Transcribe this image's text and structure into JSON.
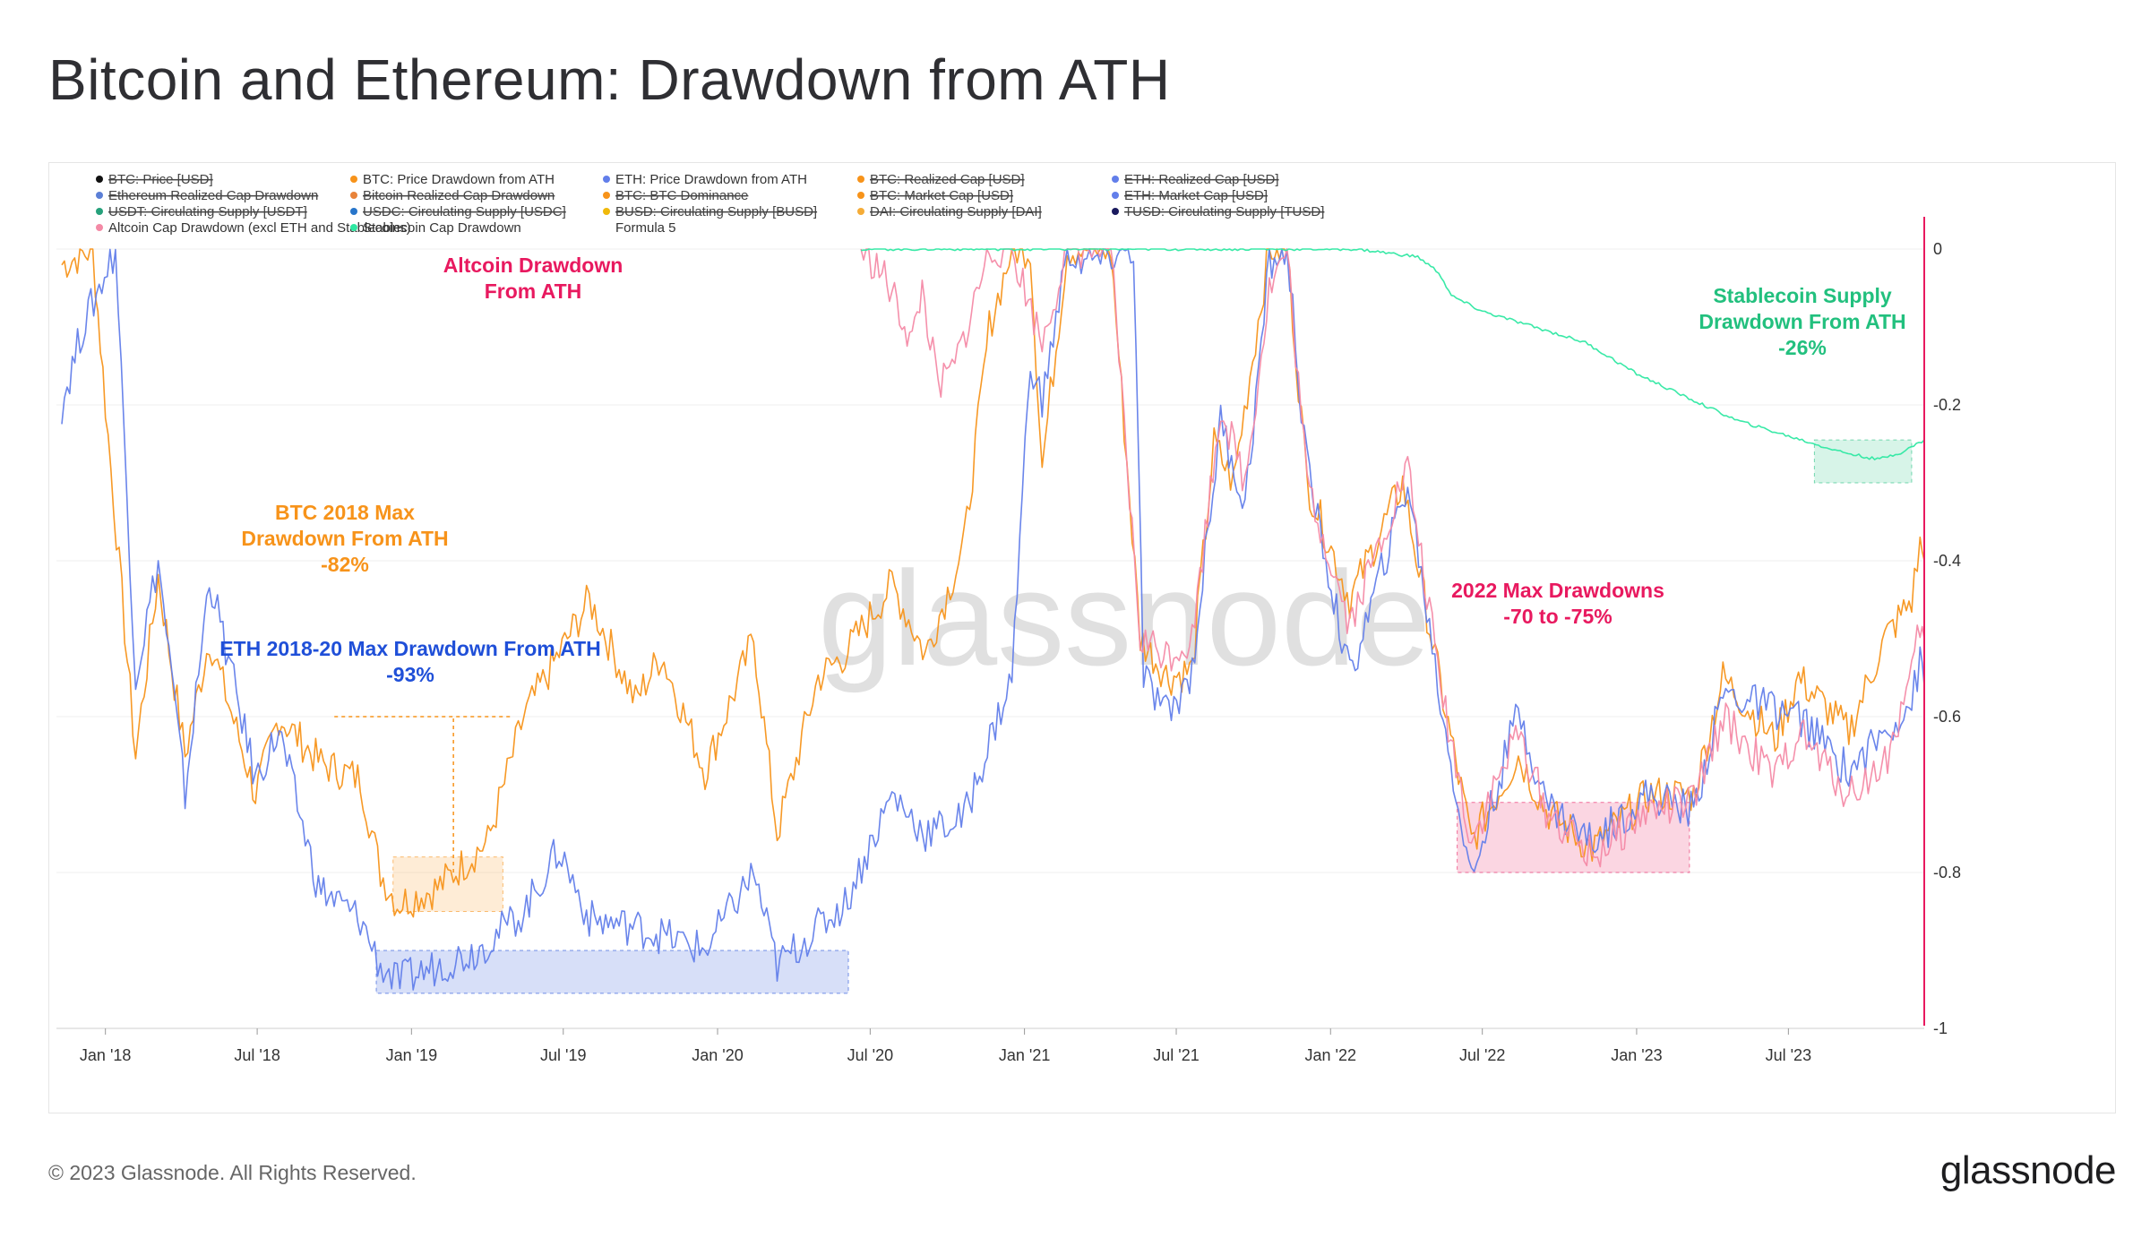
{
  "page": {
    "title": "Bitcoin and Ethereum: Drawdown from ATH",
    "copyright": "© 2023 Glassnode. All Rights Reserved.",
    "logo": "glassnode",
    "watermark": "glassnode"
  },
  "chart_data": {
    "type": "line",
    "title": "Bitcoin and Ethereum: Drawdown from ATH",
    "xlabel": "",
    "ylabel": "",
    "ylim": [
      -1,
      0
    ],
    "xlim": [
      "2017-11-10",
      "2023-12-10"
    ],
    "grid": true,
    "legend_position": "top",
    "x_ticks": [
      "Jan '18",
      "Jul '18",
      "Jan '19",
      "Jul '19",
      "Jan '20",
      "Jul '20",
      "Jan '21",
      "Jul '21",
      "Jan '22",
      "Jul '22",
      "Jan '23",
      "Jul '23"
    ],
    "x_tick_dates": [
      "2018-01-01",
      "2018-07-01",
      "2019-01-01",
      "2019-07-01",
      "2020-01-01",
      "2020-07-01",
      "2021-01-01",
      "2021-07-01",
      "2022-01-01",
      "2022-07-01",
      "2023-01-01",
      "2023-07-01"
    ],
    "y_ticks": [
      0,
      -0.2,
      -0.4,
      -0.6,
      -0.8,
      -1
    ],
    "y_tick_labels": [
      "0",
      "-0.2",
      "-0.4",
      "-0.6",
      "-0.8",
      "-1"
    ],
    "legend": [
      {
        "name": "BTC: Price [USD]",
        "color": "#111111",
        "active": false
      },
      {
        "name": "BTC: Price Drawdown from ATH",
        "color": "#f7931a",
        "active": true
      },
      {
        "name": "ETH: Price Drawdown from ATH",
        "color": "#627eea",
        "active": true
      },
      {
        "name": "BTC: Realized Cap [USD]",
        "color": "#f7931a",
        "active": false
      },
      {
        "name": "ETH: Realized Cap [USD]",
        "color": "#627eea",
        "active": false
      },
      {
        "name": "Ethereum Realized Cap Drawdown",
        "color": "#5b7fd6",
        "active": false
      },
      {
        "name": "Bitcoin Realized Cap Drawdown",
        "color": "#e8833a",
        "active": false
      },
      {
        "name": "BTC: BTC Dominance",
        "color": "#f7931a",
        "active": false
      },
      {
        "name": "BTC: Market Cap [USD]",
        "color": "#f7931a",
        "active": false
      },
      {
        "name": "ETH: Market Cap [USD]",
        "color": "#627eea",
        "active": false
      },
      {
        "name": "USDT: Circulating Supply [USDT]",
        "color": "#26a17b",
        "active": false
      },
      {
        "name": "USDC: Circulating Supply [USDC]",
        "color": "#2775ca",
        "active": false
      },
      {
        "name": "BUSD: Circulating Supply [BUSD]",
        "color": "#f0b90b",
        "active": false
      },
      {
        "name": "DAI: Circulating Supply [DAI]",
        "color": "#f5ac37",
        "active": false
      },
      {
        "name": "TUSD: Circulating Supply [TUSD]",
        "color": "#1a1a5e",
        "active": false
      },
      {
        "name": "Altcoin Cap Drawdown (excl ETH and Stablecoins)",
        "color": "#f48aa6",
        "active": true
      },
      {
        "name": "Stablecoin Cap Drawdown",
        "color": "#2ee8a2",
        "active": true
      },
      {
        "name": "Formula 5",
        "color": "",
        "active": true
      }
    ],
    "series": [
      {
        "name": "BTC: Price Drawdown from ATH",
        "color": "#f7931a",
        "points": [
          [
            "2017-11-10",
            -0.02
          ],
          [
            "2017-12-17",
            0.0
          ],
          [
            "2018-01-01",
            -0.2
          ],
          [
            "2018-02-06",
            -0.65
          ],
          [
            "2018-03-05",
            -0.42
          ],
          [
            "2018-04-06",
            -0.65
          ],
          [
            "2018-05-05",
            -0.5
          ],
          [
            "2018-06-29",
            -0.7
          ],
          [
            "2018-07-27",
            -0.6
          ],
          [
            "2018-09-15",
            -0.66
          ],
          [
            "2018-11-01",
            -0.68
          ],
          [
            "2018-11-25",
            -0.8
          ],
          [
            "2018-12-15",
            -0.84
          ],
          [
            "2019-02-01",
            -0.82
          ],
          [
            "2019-04-02",
            -0.76
          ],
          [
            "2019-05-15",
            -0.6
          ],
          [
            "2019-06-26], -0.35",
            -0.35
          ],
          [
            "2019-08-01",
            -0.45
          ],
          [
            "2019-09-25",
            -0.58
          ],
          [
            "2019-10-26",
            -0.52
          ],
          [
            "2019-12-17",
            -0.67
          ],
          [
            "2020-02-13",
            -0.5
          ],
          [
            "2020-03-12",
            -0.75
          ],
          [
            "2020-04-30",
            -0.55
          ],
          [
            "2020-06-01",
            -0.52
          ],
          [
            "2020-07-27",
            -0.43
          ],
          [
            "2020-09-05",
            -0.52
          ],
          [
            "2020-10-21",
            -0.38
          ],
          [
            "2020-11-20",
            -0.1
          ],
          [
            "2020-12-17",
            0.0
          ],
          [
            "2021-01-08",
            0.0
          ],
          [
            "2021-01-22",
            -0.28
          ],
          [
            "2021-02-21",
            0.0
          ],
          [
            "2021-03-13",
            0.0
          ],
          [
            "2021-04-14",
            0.0
          ],
          [
            "2021-05-19",
            -0.5
          ],
          [
            "2021-06-22",
            -0.55
          ],
          [
            "2021-07-20",
            -0.54
          ],
          [
            "2021-08-15",
            -0.25
          ],
          [
            "2021-09-07",
            -0.3
          ],
          [
            "2021-10-20",
            0.0
          ],
          [
            "2021-11-10",
            0.0
          ],
          [
            "2021-12-04",
            -0.3
          ],
          [
            "2022-01-24",
            -0.45
          ],
          [
            "2022-03-28",
            -0.3
          ],
          [
            "2022-05-12",
            -0.56
          ],
          [
            "2022-06-18",
            -0.76
          ],
          [
            "2022-08-13",
            -0.65
          ],
          [
            "2022-09-15",
            -0.72
          ],
          [
            "2022-11-09",
            -0.77
          ],
          [
            "2023-01-15",
            -0.7
          ],
          [
            "2023-03-10",
            -0.7
          ],
          [
            "2023-04-14",
            -0.55
          ],
          [
            "2023-06-15",
            -0.63
          ],
          [
            "2023-07-13",
            -0.55
          ],
          [
            "2023-09-11",
            -0.62
          ],
          [
            "2023-10-24",
            -0.5
          ],
          [
            "2023-11-25",
            -0.45
          ],
          [
            "2023-12-05",
            -0.38
          ],
          [
            "2023-12-10",
            -0.4
          ]
        ]
      },
      {
        "name": "ETH: Price Drawdown from ATH",
        "color": "#627eea",
        "points": [
          [
            "2017-11-10",
            -0.2
          ],
          [
            "2017-12-05",
            -0.1
          ],
          [
            "2018-01-13",
            0.0
          ],
          [
            "2018-02-06",
            -0.55
          ],
          [
            "2018-03-05",
            -0.4
          ],
          [
            "2018-04-06",
            -0.7
          ],
          [
            "2018-05-05",
            -0.42
          ],
          [
            "2018-06-29",
            -0.68
          ],
          [
            "2018-07-27",
            -0.62
          ],
          [
            "2018-09-12",
            -0.82
          ],
          [
            "2018-11-01",
            -0.86
          ],
          [
            "2018-11-25",
            -0.92
          ],
          [
            "2018-12-15",
            -0.94
          ],
          [
            "2019-01-30], -0.91",
            -0.91
          ],
          [
            "2019-03-20",
            -0.9
          ],
          [
            "2019-05-15",
            -0.85
          ],
          [
            "2019-06-26",
            -0.77
          ],
          [
            "2019-08-01",
            -0.86
          ],
          [
            "2019-09-25",
            -0.87
          ],
          [
            "2019-10-26",
            -0.88
          ],
          [
            "2019-12-17",
            -0.9
          ],
          [
            "2020-02-13",
            -0.8
          ],
          [
            "2020-03-12",
            -0.92
          ],
          [
            "2020-04-30",
            -0.87
          ],
          [
            "2020-06-01",
            -0.84
          ],
          [
            "2020-07-27",
            -0.7
          ],
          [
            "2020-09-05",
            -0.75
          ],
          [
            "2020-10-21",
            -0.73
          ],
          [
            "2020-11-24",
            -0.62
          ],
          [
            "2020-12-17",
            -0.55
          ],
          [
            "2021-01-08",
            -0.14
          ],
          [
            "2021-01-22",
            -0.2
          ],
          [
            "2021-02-21",
            0.0
          ],
          [
            "2021-03-13",
            -0.02
          ],
          [
            "2021-05-11",
            0.0
          ],
          [
            "2021-05-23",
            -0.55
          ],
          [
            "2021-06-22",
            -0.6
          ],
          [
            "2021-07-20",
            -0.54
          ],
          [
            "2021-08-23",
            -0.22
          ],
          [
            "2021-09-21",
            -0.33
          ],
          [
            "2021-10-20",
            -0.02
          ],
          [
            "2021-11-10",
            0.0
          ],
          [
            "2021-12-04",
            -0.28
          ],
          [
            "2022-01-24",
            -0.55
          ],
          [
            "2022-04-03",
            -0.3
          ],
          [
            "2022-05-12",
            -0.58
          ],
          [
            "2022-06-18",
            -0.81
          ],
          [
            "2022-08-13",
            -0.59
          ],
          [
            "2022-09-15",
            -0.71
          ],
          [
            "2022-11-09",
            -0.76
          ],
          [
            "2023-01-15",
            -0.7
          ],
          [
            "2023-03-10",
            -0.72
          ],
          [
            "2023-04-14",
            -0.57
          ],
          [
            "2023-06-15], -0.64",
            -0.64
          ],
          [
            "2023-07-13",
            -0.6
          ],
          [
            "2023-09-11",
            -0.67
          ],
          [
            "2023-10-24",
            -0.62
          ],
          [
            "2023-11-25",
            -0.58
          ],
          [
            "2023-12-05",
            -0.53
          ],
          [
            "2023-12-10",
            -0.56
          ]
        ]
      },
      {
        "name": "Altcoin Cap Drawdown (excl ETH and Stablecoins)",
        "color": "#f48aa6",
        "points": [
          [
            "2020-06-20",
            0.0
          ],
          [
            "2020-07-15",
            -0.03
          ],
          [
            "2020-08-05",
            -0.08
          ],
          [
            "2020-08-20",
            -0.12
          ],
          [
            "2020-09-01",
            -0.05
          ],
          [
            "2020-09-20",
            -0.18
          ],
          [
            "2020-10-10",
            -0.15
          ],
          [
            "2020-10-30",
            -0.08
          ],
          [
            "2020-11-20",
            0.0
          ],
          [
            "2020-12-17",
            0.0
          ],
          [
            "2021-01-22",
            -0.12
          ],
          [
            "2021-02-21",
            0.0
          ],
          [
            "2021-04-14",
            0.0
          ],
          [
            "2021-05-19",
            -0.5
          ],
          [
            "2021-06-22",
            -0.52
          ],
          [
            "2021-07-20",
            -0.5
          ],
          [
            "2021-08-23",
            -0.2
          ],
          [
            "2021-09-21",
            -0.3
          ],
          [
            "2021-10-20",
            -0.05
          ],
          [
            "2021-11-10",
            0.0
          ],
          [
            "2021-12-04",
            -0.3
          ],
          [
            "2022-01-24",
            -0.48
          ],
          [
            "2022-04-03",
            -0.28
          ],
          [
            "2022-05-12",
            -0.56
          ],
          [
            "2022-06-18",
            -0.76
          ],
          [
            "2022-08-13",
            -0.62
          ],
          [
            "2022-09-15",
            -0.72
          ],
          [
            "2022-11-09",
            -0.78
          ],
          [
            "2023-01-15",
            -0.72
          ],
          [
            "2023-03-10",
            -0.71
          ],
          [
            "2023-04-14",
            -0.6
          ],
          [
            "2023-06-15",
            -0.68
          ],
          [
            "2023-07-13",
            -0.62
          ],
          [
            "2023-09-11",
            -0.7
          ],
          [
            "2023-10-24",
            -0.66
          ],
          [
            "2023-11-25",
            -0.55
          ],
          [
            "2023-12-05",
            -0.48
          ],
          [
            "2023-12-10",
            -0.5
          ]
        ]
      },
      {
        "name": "Stablecoin Cap Drawdown",
        "color": "#2ee8a2",
        "points": [
          [
            "2020-06-20",
            0.0
          ],
          [
            "2021-06-01",
            0.0
          ],
          [
            "2022-02-01",
            0.0
          ],
          [
            "2022-04-15",
            -0.01
          ],
          [
            "2022-05-10",
            -0.03
          ],
          [
            "2022-05-25",
            -0.06
          ],
          [
            "2022-07-01",
            -0.08
          ],
          [
            "2022-09-01",
            -0.1
          ],
          [
            "2022-11-01",
            -0.12
          ],
          [
            "2023-01-01",
            -0.16
          ],
          [
            "2023-03-01",
            -0.19
          ],
          [
            "2023-05-01",
            -0.22
          ],
          [
            "2023-07-01",
            -0.24
          ],
          [
            "2023-09-01",
            -0.26
          ],
          [
            "2023-10-15",
            -0.27
          ],
          [
            "2023-11-15",
            -0.26
          ],
          [
            "2023-12-10",
            -0.245
          ]
        ]
      }
    ],
    "annotations": [
      {
        "text": [
          "BTC 2018 Max",
          "Drawdown From ATH",
          "-82%"
        ],
        "color": "#f7931a",
        "box": [
          "2018-12-10",
          "2019-04-20",
          -0.78,
          -0.85
        ]
      },
      {
        "text": [
          "ETH 2018-20 Max Drawdown From ATH",
          "-93%"
        ],
        "color": "#1f4fd8",
        "box": [
          "2018-11-20",
          "2020-06-05",
          -0.9,
          -0.955
        ]
      },
      {
        "text": [
          "Altcoin Drawdown",
          "From ATH"
        ],
        "color": "#e8195f"
      },
      {
        "text": [
          "Stablecoin Supply",
          "Drawdown From ATH",
          "-26%"
        ],
        "color": "#22c07e",
        "box": [
          "2023-08-01",
          "2023-11-25",
          -0.245,
          -0.3
        ]
      },
      {
        "text": [
          "2022 Max Drawdowns",
          "-70 to -75%"
        ],
        "color": "#e8195f",
        "box": [
          "2022-06-01",
          "2023-03-05",
          -0.71,
          -0.8
        ]
      }
    ]
  }
}
